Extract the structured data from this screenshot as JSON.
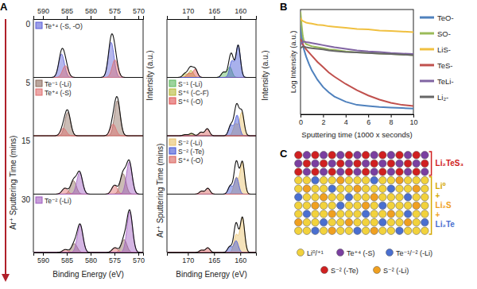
{
  "chart_data": [
    {
      "type": "area",
      "title": "A",
      "x_label": "Binding Energy (eV)",
      "y_label": "Ar⁺ Sputtering Time (mins)",
      "y2_label": "Intensity (a.u.)",
      "xlim": [
        592,
        569
      ],
      "xticks": [
        590,
        585,
        580,
        575,
        570
      ],
      "ylim": [
        0,
        1
      ],
      "tick_labels": "x",
      "rows": [
        0,
        5,
        15,
        30
      ],
      "series": [
        {
          "name": "Te⁺⁴ (-S, -O)",
          "color": "#5a5fd8",
          "peaks": [
            [
              {
                "x": 575.7,
                "y": 0.6,
                "w": 1.4
              },
              {
                "x": 586.1,
                "y": 0.4,
                "w": 1.4
              }
            ],
            null,
            null,
            null
          ]
        },
        {
          "name": "Te⁻¹ (-Li)",
          "color": "#8c6a5c",
          "peaks": [
            null,
            [
              {
                "x": 574.4,
                "y": 0.6,
                "w": 1.4
              },
              {
                "x": 584.8,
                "y": 0.4,
                "w": 1.4
              }
            ],
            [
              {
                "x": 573.2,
                "y": 0.35,
                "w": 1.4
              },
              {
                "x": 583.6,
                "y": 0.23,
                "w": 1.4
              }
            ],
            [
              {
                "x": 573.0,
                "y": 0.22,
                "w": 1.4
              },
              {
                "x": 583.4,
                "y": 0.15,
                "w": 1.4
              }
            ]
          ]
        },
        {
          "name": "Te⁺⁴ (-S)",
          "color": "#e06c6c",
          "peaks": [
            [
              {
                "x": 574.9,
                "y": 0.3,
                "w": 1.4
              },
              {
                "x": 585.3,
                "y": 0.2,
                "w": 1.4
              }
            ],
            [
              {
                "x": 575.3,
                "y": 0.2,
                "w": 1.4
              },
              {
                "x": 585.7,
                "y": 0.13,
                "w": 1.4
              }
            ],
            [
              {
                "x": 575.0,
                "y": 0.15,
                "w": 1.4
              },
              {
                "x": 585.4,
                "y": 0.1,
                "w": 1.4
              }
            ],
            [
              {
                "x": 574.9,
                "y": 0.08,
                "w": 1.4
              },
              {
                "x": 585.3,
                "y": 0.05,
                "w": 1.4
              }
            ]
          ]
        },
        {
          "name": "Te⁻² (-Li)",
          "color": "#a05cc0",
          "peaks": [
            null,
            null,
            [
              {
                "x": 571.9,
                "y": 0.55,
                "w": 1.4
              },
              {
                "x": 582.3,
                "y": 0.37,
                "w": 1.4
              }
            ],
            [
              {
                "x": 571.8,
                "y": 0.7,
                "w": 1.4
              },
              {
                "x": 582.2,
                "y": 0.47,
                "w": 1.4
              }
            ]
          ]
        }
      ]
    },
    {
      "type": "area",
      "x_label": "Binding Energy (eV)",
      "y_label": "Ar⁺ Sputtering Time (mins)",
      "y2_label": "Intensity (a.u.)",
      "xlim": [
        174,
        157
      ],
      "xticks": [
        170,
        165,
        160
      ],
      "ylim": [
        0,
        1
      ],
      "tick_labels": "x",
      "series": [
        {
          "name": "S⁻¹ (-Li)",
          "color": "#5cb85c",
          "peaks": [
            [
              {
                "x": 162.0,
                "y": 0.18,
                "w": 1.0
              },
              {
                "x": 163.2,
                "y": 0.09,
                "w": 1.0
              }
            ],
            null,
            null,
            null
          ]
        },
        {
          "name": "S⁺⁶ (-C-F)",
          "color": "#b5b835",
          "peaks": [
            [
              {
                "x": 169.4,
                "y": 0.12,
                "w": 1.0
              },
              {
                "x": 170.6,
                "y": 0.06,
                "w": 1.0
              }
            ],
            [
              {
                "x": 169.3,
                "y": 0.04,
                "w": 1.0
              },
              {
                "x": 170.5,
                "y": 0.02,
                "w": 1.0
              }
            ],
            null,
            null
          ]
        },
        {
          "name": "S⁺⁶ (-O)",
          "color": "#e05050",
          "peaks": [
            [
              {
                "x": 168.6,
                "y": 0.14,
                "w": 1.0
              },
              {
                "x": 169.8,
                "y": 0.07,
                "w": 1.0
              }
            ],
            null,
            null,
            null
          ]
        },
        {
          "name": "S⁻² (-Li)",
          "color": "#e8c068",
          "peaks": [
            null,
            [
              {
                "x": 159.7,
                "y": 0.4,
                "w": 1.0
              },
              {
                "x": 160.9,
                "y": 0.2,
                "w": 1.0
              }
            ],
            [
              {
                "x": 159.6,
                "y": 0.55,
                "w": 1.0
              },
              {
                "x": 160.8,
                "y": 0.28,
                "w": 1.0
              }
            ],
            [
              {
                "x": 159.6,
                "y": 0.6,
                "w": 1.0
              },
              {
                "x": 160.8,
                "y": 0.3,
                "w": 1.0
              }
            ]
          ]
        },
        {
          "name": "S⁻² (-Te)",
          "color": "#3f51d4",
          "peaks": [
            [
              {
                "x": 160.4,
                "y": 0.55,
                "w": 1.0
              },
              {
                "x": 161.6,
                "y": 0.28,
                "w": 1.0
              }
            ],
            [
              {
                "x": 160.6,
                "y": 0.35,
                "w": 1.0
              },
              {
                "x": 161.8,
                "y": 0.18,
                "w": 1.0
              }
            ],
            [
              {
                "x": 160.7,
                "y": 0.28,
                "w": 1.0
              },
              {
                "x": 161.9,
                "y": 0.14,
                "w": 1.0
              }
            ],
            [
              {
                "x": 160.8,
                "y": 0.2,
                "w": 1.0
              },
              {
                "x": 162.0,
                "y": 0.1,
                "w": 1.0
              }
            ]
          ]
        },
        {
          "name": "S⁺⁴ (-O)",
          "color": "#d9605a",
          "peaks": [
            null,
            [
              {
                "x": 166.3,
                "y": 0.12,
                "w": 1.0
              },
              {
                "x": 167.5,
                "y": 0.06,
                "w": 1.0
              }
            ],
            [
              {
                "x": 166.2,
                "y": 0.1,
                "w": 1.0
              },
              {
                "x": 167.4,
                "y": 0.05,
                "w": 1.0
              }
            ],
            [
              {
                "x": 166.2,
                "y": 0.08,
                "w": 1.0
              },
              {
                "x": 167.4,
                "y": 0.04,
                "w": 1.0
              }
            ]
          ]
        }
      ]
    },
    {
      "type": "line",
      "title": "B",
      "x_label": "Sputtering time (1000 x seconds)",
      "y_label": "Log Intensity (a.u.)",
      "xlim": [
        0,
        10
      ],
      "xticks": [
        0,
        2,
        4,
        6,
        8,
        10
      ],
      "ylim": [
        0,
        10
      ],
      "tick_labels": "x",
      "legend": "right",
      "x": [
        0,
        0.1,
        0.2,
        0.3,
        0.5,
        0.75,
        1,
        1.5,
        2,
        2.5,
        3,
        4,
        5,
        6,
        7,
        8,
        9,
        10
      ],
      "series": [
        {
          "name": "TeO-",
          "color": "#4f81bd",
          "values": [
            8.5,
            7.5,
            6.8,
            6.2,
            5.5,
            4.8,
            4.2,
            3.3,
            2.6,
            2.1,
            1.7,
            1.2,
            0.9,
            0.8,
            0.7,
            0.65,
            0.6,
            0.55
          ]
        },
        {
          "name": "SO-",
          "color": "#9bbb59",
          "values": [
            9.8,
            8.5,
            7.5,
            7.0,
            6.7,
            6.6,
            6.5,
            6.4,
            6.3,
            6.2,
            6.15,
            6.0,
            5.9,
            5.85,
            5.8,
            5.75,
            5.7,
            5.65
          ]
        },
        {
          "name": "LiS-",
          "color": "#f0c040",
          "values": [
            9.2,
            9.0,
            8.9,
            8.85,
            8.75,
            8.7,
            8.65,
            8.55,
            8.5,
            8.4,
            8.35,
            8.25,
            8.15,
            8.1,
            8.0,
            7.95,
            7.9,
            7.85
          ]
        },
        {
          "name": "TeS-",
          "color": "#c0504d",
          "values": [
            7.2,
            7.0,
            6.7,
            6.5,
            6.2,
            5.9,
            5.6,
            5.0,
            4.5,
            4.0,
            3.6,
            2.9,
            2.3,
            1.8,
            1.4,
            1.1,
            0.9,
            0.8
          ]
        },
        {
          "name": "TeLi-",
          "color": "#8064a2",
          "values": [
            6.6,
            6.8,
            6.9,
            6.95,
            6.9,
            6.85,
            6.8,
            6.7,
            6.6,
            6.5,
            6.4,
            6.25,
            6.1,
            6.0,
            5.95,
            5.85,
            5.8,
            5.75
          ]
        },
        {
          "name": "Li₂-",
          "color": "#666666",
          "values": [
            6.3,
            6.4,
            6.45,
            6.45,
            6.4,
            6.35,
            6.3,
            6.25,
            6.2,
            6.1,
            6.05,
            5.95,
            5.9,
            5.85,
            5.8,
            5.75,
            5.7,
            5.65
          ]
        }
      ]
    }
  ],
  "diagram": {
    "title": "C",
    "legend": [
      {
        "label": "Li⁰/⁺¹",
        "color": "#f2d23c"
      },
      {
        "label": "Te⁺⁴ (-S)",
        "color": "#7a3fa0"
      },
      {
        "label": "Te⁻¹/⁻² (-Li)",
        "color": "#4a6fd0"
      },
      {
        "label": "S⁻² (-Te)",
        "color": "#d02020"
      },
      {
        "label": "S⁻² (-Li)",
        "color": "#f0a020"
      }
    ],
    "layers": [
      {
        "rows": 3,
        "labels": [
          {
            "text": "Li₂TeS₃",
            "color": "#d02020"
          }
        ]
      },
      {
        "rows": 7,
        "labels": [
          {
            "text": "Li⁰",
            "color": "#d4a800"
          },
          {
            "text": "+",
            "color": "#d4a800"
          },
          {
            "text": "Li₂S",
            "color": "#f0a020"
          },
          {
            "text": "+",
            "color": "#f0a020"
          },
          {
            "text": "Li₂Te",
            "color": "#4a6fd0"
          }
        ]
      }
    ],
    "grid": [
      [
        3,
        1,
        3,
        1,
        3,
        1,
        3,
        1,
        3,
        1,
        3,
        1,
        3,
        1,
        3,
        1
      ],
      [
        1,
        3,
        1,
        3,
        1,
        3,
        1,
        3,
        1,
        3,
        1,
        3,
        1,
        3,
        1,
        3
      ],
      [
        3,
        1,
        3,
        1,
        3,
        1,
        3,
        1,
        3,
        1,
        3,
        1,
        3,
        1,
        3,
        1
      ],
      [
        0,
        0,
        2,
        0,
        0,
        4,
        0,
        0,
        0,
        2,
        0,
        0,
        4,
        0,
        0,
        0
      ],
      [
        0,
        4,
        0,
        0,
        2,
        0,
        0,
        4,
        0,
        0,
        0,
        2,
        0,
        0,
        4,
        0
      ],
      [
        2,
        0,
        0,
        4,
        0,
        0,
        2,
        0,
        0,
        4,
        0,
        0,
        0,
        2,
        0,
        0
      ],
      [
        0,
        0,
        4,
        0,
        0,
        2,
        0,
        0,
        4,
        0,
        2,
        0,
        0,
        0,
        4,
        0
      ],
      [
        0,
        2,
        0,
        0,
        4,
        0,
        0,
        0,
        2,
        0,
        0,
        4,
        0,
        2,
        0,
        0
      ],
      [
        4,
        0,
        0,
        2,
        0,
        0,
        4,
        0,
        0,
        0,
        2,
        0,
        0,
        4,
        0,
        2
      ],
      [
        0,
        0,
        2,
        0,
        4,
        0,
        0,
        2,
        0,
        4,
        0,
        0,
        2,
        0,
        0,
        0
      ]
    ]
  }
}
